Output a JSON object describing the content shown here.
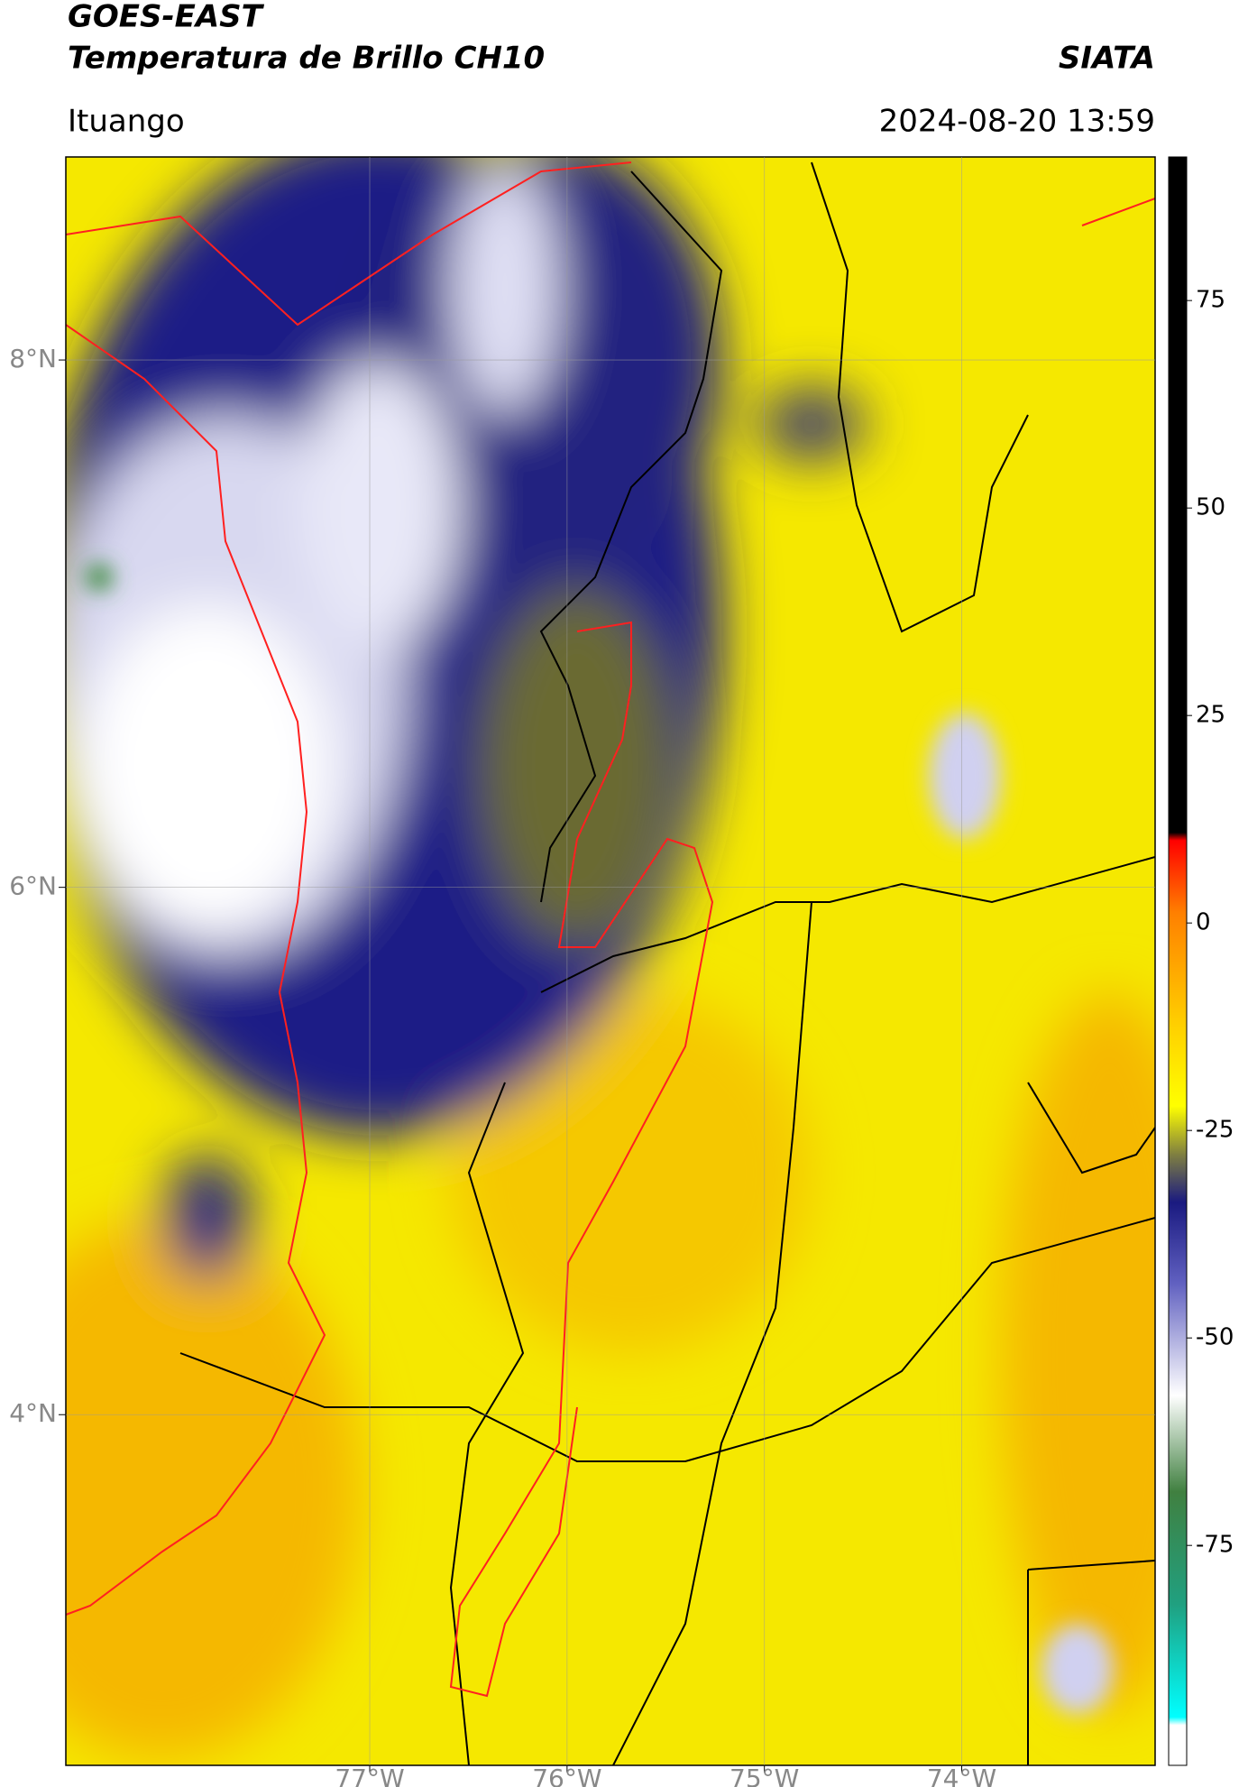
{
  "header": {
    "title": "GOES-EAST",
    "subtitle": "Temperatura de Brillo CH10",
    "source": "SIATA",
    "location": "Ituango",
    "datetime": "2024-08-20 13:59"
  },
  "map": {
    "lon_extent": [
      -78.54,
      -73.02
    ],
    "lat_extent": [
      2.67,
      8.77
    ],
    "lat_ticks": [
      {
        "value": 8,
        "label": "8°N"
      },
      {
        "value": 6,
        "label": "6°N"
      },
      {
        "value": 4,
        "label": "4°N"
      }
    ],
    "lon_ticks": [
      {
        "value": -77,
        "label": "77°W"
      },
      {
        "value": -76,
        "label": "76°W"
      },
      {
        "value": -75,
        "label": "75°W"
      },
      {
        "value": -74,
        "label": "74°W"
      }
    ]
  },
  "colorbar": {
    "range": [
      -101.5,
      92.3
    ],
    "ticks": [
      75,
      50,
      25,
      0,
      -25,
      -50,
      -75
    ]
  }
}
